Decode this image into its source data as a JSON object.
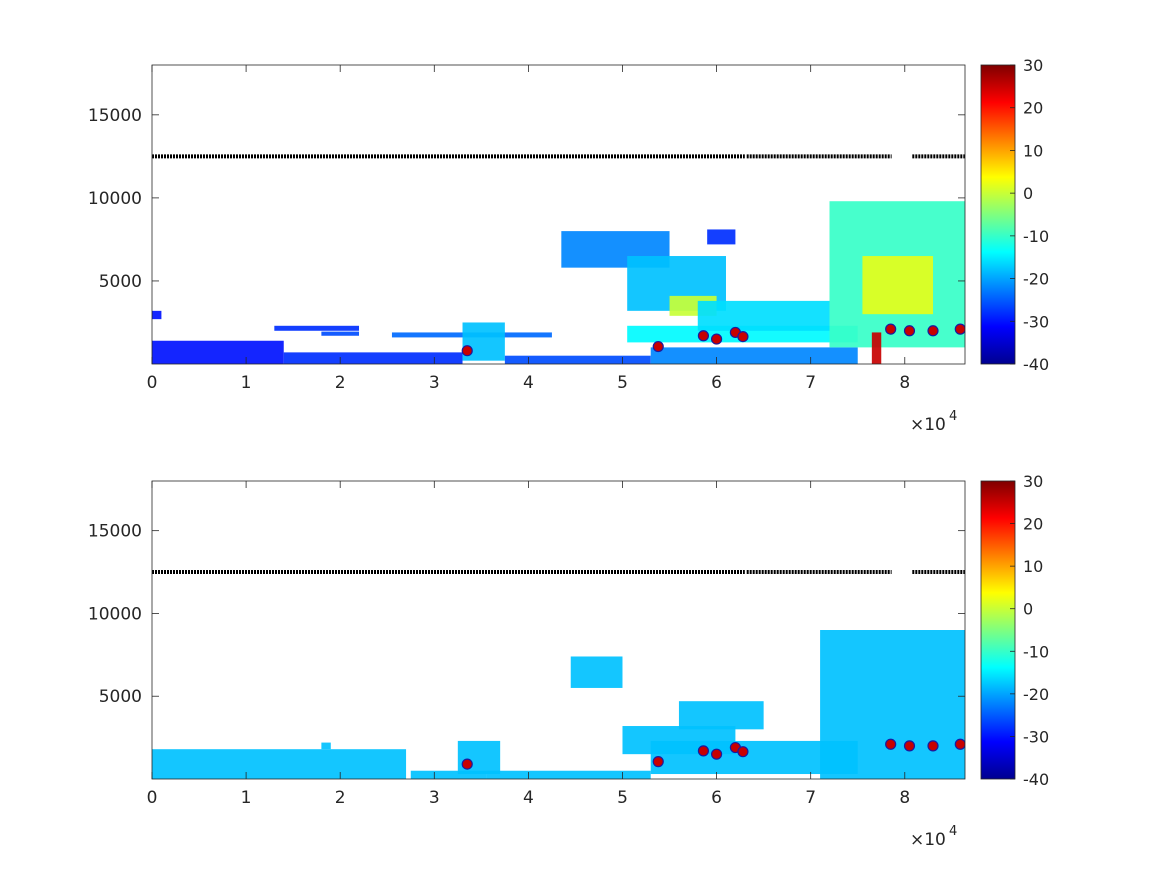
{
  "chart_data": [
    {
      "type": "heatmap",
      "panel": "top",
      "xlim": [
        0,
        86400
      ],
      "ylim": [
        0,
        18000
      ],
      "x_ticks": [
        0,
        10000,
        20000,
        30000,
        40000,
        50000,
        60000,
        70000,
        80000
      ],
      "x_tick_labels": [
        "0",
        "1",
        "2",
        "3",
        "4",
        "5",
        "6",
        "7",
        "8"
      ],
      "x_exponent_label": "×10",
      "x_exponent_power": "4",
      "y_ticks": [
        5000,
        10000,
        15000
      ],
      "y_tick_labels": [
        "5000",
        "10000",
        "15000"
      ],
      "colorbar": {
        "range": [
          -40,
          30
        ],
        "ticks": [
          30,
          20,
          10,
          0,
          -10,
          -20,
          -30,
          -40
        ],
        "tick_labels": [
          "30",
          "20",
          "10",
          "0",
          "-10",
          "-20",
          "-30",
          "-40"
        ],
        "colormap": "jet"
      },
      "line_series": {
        "y": 12500,
        "x_ranges": [
          [
            0,
            63000
          ],
          [
            63200,
            78600
          ],
          [
            80800,
            86400
          ]
        ],
        "color": "#000000"
      },
      "echo_regions": [
        {
          "x": [
            0,
            14000
          ],
          "y": [
            0,
            1400
          ],
          "value": -30
        },
        {
          "x": [
            0,
            1000
          ],
          "y": [
            2700,
            3200
          ],
          "value": -30
        },
        {
          "x": [
            14000,
            33000
          ],
          "y": [
            0,
            700
          ],
          "value": -28
        },
        {
          "x": [
            13000,
            22000
          ],
          "y": [
            2000,
            2300
          ],
          "value": -28
        },
        {
          "x": [
            18000,
            22000
          ],
          "y": [
            1700,
            1950
          ],
          "value": -26
        },
        {
          "x": [
            25500,
            42500
          ],
          "y": [
            1600,
            1900
          ],
          "value": -24
        },
        {
          "x": [
            33000,
            37500
          ],
          "y": [
            200,
            2500
          ],
          "value": -18
        },
        {
          "x": [
            37500,
            53000
          ],
          "y": [
            0,
            500
          ],
          "value": -26
        },
        {
          "x": [
            43500,
            55000
          ],
          "y": [
            5800,
            8000
          ],
          "value": -22
        },
        {
          "x": [
            50500,
            61000
          ],
          "y": [
            3200,
            6500
          ],
          "value": -18
        },
        {
          "x": [
            50500,
            75000
          ],
          "y": [
            1300,
            2300
          ],
          "value": -14
        },
        {
          "x": [
            53000,
            75000
          ],
          "y": [
            0,
            1000
          ],
          "value": -22
        },
        {
          "x": [
            55000,
            60000
          ],
          "y": [
            2900,
            4100
          ],
          "value": 0
        },
        {
          "x": [
            58000,
            72000
          ],
          "y": [
            2000,
            3800
          ],
          "value": -16
        },
        {
          "x": [
            59000,
            62000
          ],
          "y": [
            7200,
            8100
          ],
          "value": -28
        },
        {
          "x": [
            72000,
            86400
          ],
          "y": [
            1000,
            9800
          ],
          "value": -10
        },
        {
          "x": [
            75500,
            83000
          ],
          "y": [
            3000,
            6500
          ],
          "value": 2
        },
        {
          "x": [
            76500,
            77500
          ],
          "y": [
            0,
            1900
          ],
          "value": 25
        }
      ],
      "markers": [
        {
          "x": 33500,
          "y": 800,
          "value": 25
        },
        {
          "x": 53800,
          "y": 1050,
          "value": 25
        },
        {
          "x": 58600,
          "y": 1700,
          "value": 25
        },
        {
          "x": 60000,
          "y": 1500,
          "value": 25
        },
        {
          "x": 62000,
          "y": 1900,
          "value": 25
        },
        {
          "x": 62800,
          "y": 1650,
          "value": 25
        },
        {
          "x": 78500,
          "y": 2100,
          "value": 25
        },
        {
          "x": 80500,
          "y": 2000,
          "value": 25
        },
        {
          "x": 83000,
          "y": 2000,
          "value": 25
        },
        {
          "x": 85900,
          "y": 2100,
          "value": 25
        }
      ]
    },
    {
      "type": "heatmap",
      "panel": "bottom",
      "xlim": [
        0,
        86400
      ],
      "ylim": [
        0,
        18000
      ],
      "x_ticks": [
        0,
        10000,
        20000,
        30000,
        40000,
        50000,
        60000,
        70000,
        80000
      ],
      "x_tick_labels": [
        "0",
        "1",
        "2",
        "3",
        "4",
        "5",
        "6",
        "7",
        "8"
      ],
      "x_exponent_label": "×10",
      "x_exponent_power": "4",
      "y_ticks": [
        5000,
        10000,
        15000
      ],
      "y_tick_labels": [
        "5000",
        "10000",
        "15000"
      ],
      "colorbar": {
        "range": [
          -40,
          30
        ],
        "ticks": [
          30,
          20,
          10,
          0,
          -10,
          -20,
          -30,
          -40
        ],
        "tick_labels": [
          "30",
          "20",
          "10",
          "0",
          "-10",
          "-20",
          "-30",
          "-40"
        ],
        "colormap": "jet"
      },
      "line_series": {
        "y": 12500,
        "x_ranges": [
          [
            0,
            63000
          ],
          [
            63200,
            78600
          ],
          [
            80800,
            86400
          ]
        ],
        "color": "#000000"
      },
      "echo_regions": [
        {
          "x": [
            0,
            27000
          ],
          "y": [
            0,
            1800
          ],
          "value": -18
        },
        {
          "x": [
            18000,
            19000
          ],
          "y": [
            1800,
            2200
          ],
          "value": -18
        },
        {
          "x": [
            27500,
            35500
          ],
          "y": [
            0,
            500
          ],
          "value": -18
        },
        {
          "x": [
            32500,
            37000
          ],
          "y": [
            300,
            2300
          ],
          "value": -18
        },
        {
          "x": [
            35500,
            53000
          ],
          "y": [
            0,
            500
          ],
          "value": -18
        },
        {
          "x": [
            44500,
            50000
          ],
          "y": [
            5500,
            7400
          ],
          "value": -18
        },
        {
          "x": [
            50000,
            62000
          ],
          "y": [
            1500,
            3200
          ],
          "value": -18
        },
        {
          "x": [
            53000,
            75000
          ],
          "y": [
            300,
            2300
          ],
          "value": -18
        },
        {
          "x": [
            56000,
            65000
          ],
          "y": [
            3000,
            4700
          ],
          "value": -18
        },
        {
          "x": [
            71000,
            86400
          ],
          "y": [
            0,
            9000
          ],
          "value": -18
        }
      ],
      "markers": [
        {
          "x": 33500,
          "y": 900,
          "value": 25
        },
        {
          "x": 53800,
          "y": 1050,
          "value": 25
        },
        {
          "x": 58600,
          "y": 1700,
          "value": 25
        },
        {
          "x": 60000,
          "y": 1500,
          "value": 25
        },
        {
          "x": 62000,
          "y": 1900,
          "value": 25
        },
        {
          "x": 62800,
          "y": 1650,
          "value": 25
        },
        {
          "x": 78500,
          "y": 2100,
          "value": 25
        },
        {
          "x": 80500,
          "y": 2000,
          "value": 25
        },
        {
          "x": 83000,
          "y": 2000,
          "value": 25
        },
        {
          "x": 85900,
          "y": 2100,
          "value": 25
        }
      ]
    }
  ]
}
